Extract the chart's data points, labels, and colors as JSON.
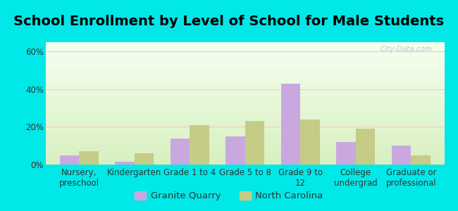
{
  "title": "School Enrollment by Level of School for Male Students",
  "categories": [
    "Nursery,\npreschool",
    "Kindergarten",
    "Grade 1 to 4",
    "Grade 5 to 8",
    "Grade 9 to\n12",
    "College\nundergrad",
    "Graduate or\nprofessional"
  ],
  "granite_quarry": [
    5,
    1.5,
    14,
    15,
    43,
    12,
    10
  ],
  "north_carolina": [
    7,
    6,
    21,
    23,
    24,
    19,
    5
  ],
  "bar_color_gq": "#c9a8e0",
  "bar_color_nc": "#c5cc85",
  "background_outer": "#00e8e8",
  "background_inner_bottom": "#d8f0c0",
  "background_inner_top": "#f5fff0",
  "ylabel_ticks": [
    "0%",
    "20%",
    "40%",
    "60%"
  ],
  "yticks": [
    0,
    20,
    40,
    60
  ],
  "ylim": [
    0,
    65
  ],
  "title_fontsize": 14,
  "tick_fontsize": 8.5,
  "legend_fontsize": 9.5,
  "bar_width": 0.35,
  "watermark": "City-Data.com"
}
